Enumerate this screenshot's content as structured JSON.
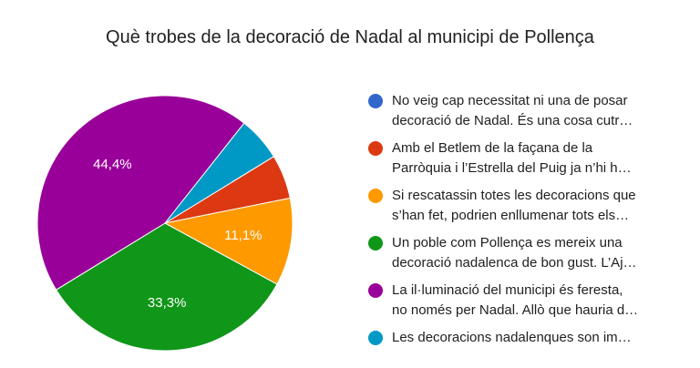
{
  "chart_data": {
    "type": "pie",
    "title": "Què trobes de la decoració de Nadal al municipi de Pollença",
    "legend_position": "right",
    "slices": [
      {
        "label_lines": [
          "No veig cap necessitat ni una de posar",
          "decoració de Nadal. És una cosa cutr…"
        ],
        "value": 0,
        "color": "#3366cc",
        "pct_label": ""
      },
      {
        "label_lines": [
          "Amb el Betlem de la façana de la",
          "Parròquia i l’Estrella del Puig ja n’hi h…"
        ],
        "value": 5.6,
        "color": "#dc3912",
        "pct_label": ""
      },
      {
        "label_lines": [
          "Si rescatassin totes les decoracions que",
          "s’han fet, podrien enllumenar tots els…"
        ],
        "value": 11.1,
        "color": "#ff9900",
        "pct_label": "11,1%"
      },
      {
        "label_lines": [
          "Un poble com Pollença es mereix una",
          "decoració nadalenca de bon gust. L’Aj…"
        ],
        "value": 33.3,
        "color": "#109618",
        "pct_label": "33,3%"
      },
      {
        "label_lines": [
          "La il·luminació del municipi és feresta,",
          "no només per Nadal. Allò que hauria d…"
        ],
        "value": 44.4,
        "color": "#990099",
        "pct_label": "44,4%"
      },
      {
        "label_lines": [
          "Les decoracions nadalenques son im…"
        ],
        "value": 5.6,
        "color": "#0099c6",
        "pct_label": ""
      }
    ]
  }
}
